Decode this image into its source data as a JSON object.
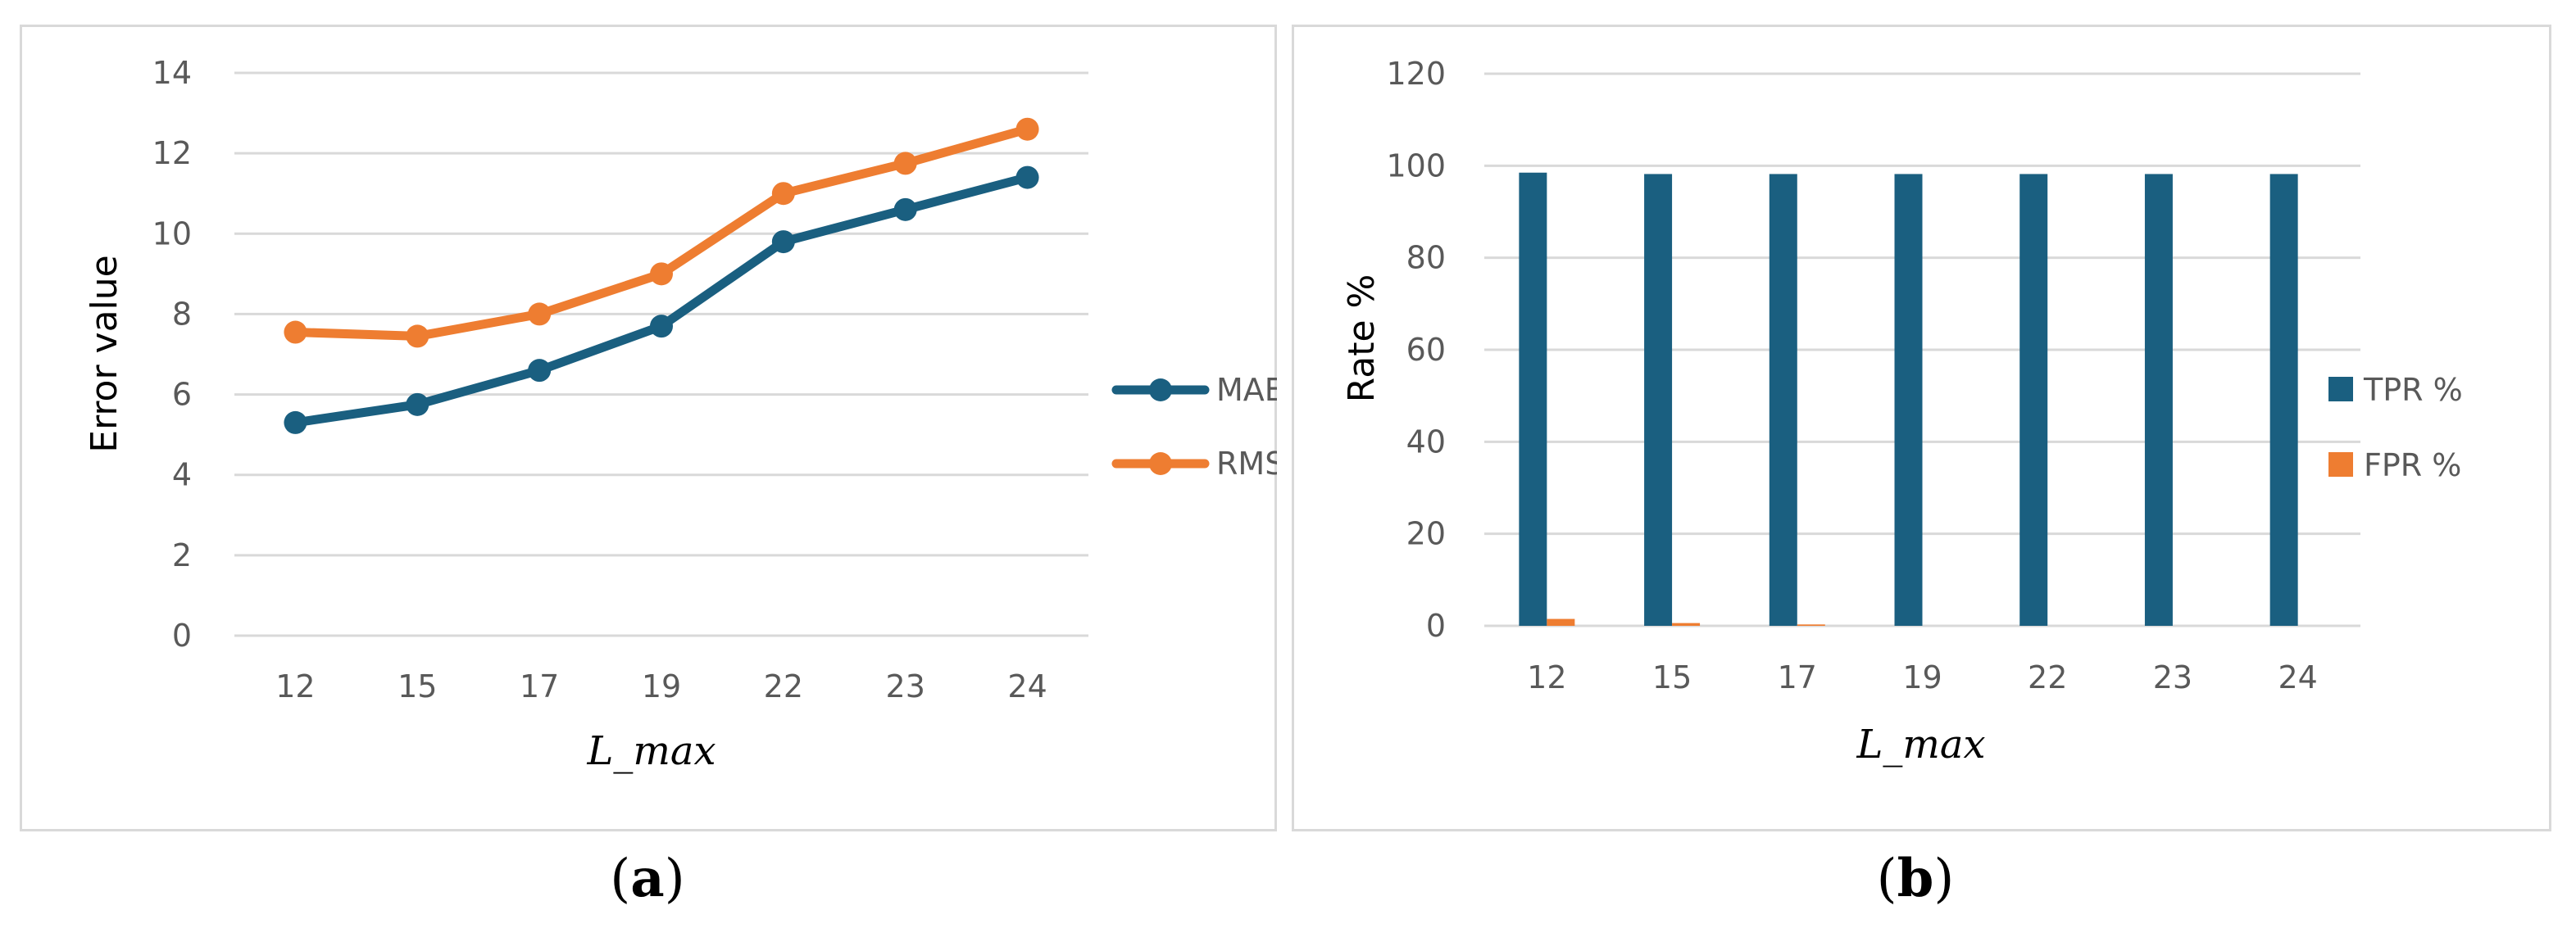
{
  "panels": {
    "a_label": "a",
    "b_label": "b"
  },
  "chart_data": [
    {
      "type": "line",
      "categories": [
        "12",
        "15",
        "17",
        "19",
        "22",
        "23",
        "24"
      ],
      "ylabel": "Error value",
      "xlabel": "L_max",
      "ylim": [
        0,
        14
      ],
      "yticks": [
        0,
        2,
        4,
        6,
        8,
        10,
        12,
        14
      ],
      "grid": true,
      "legend_position": "right",
      "series": [
        {
          "name": "MAE",
          "legend_text": "MAE",
          "color": "#1a5f80",
          "values": [
            5.3,
            5.75,
            6.6,
            7.7,
            9.8,
            10.6,
            11.4
          ]
        },
        {
          "name": "RMSE",
          "legend_text": "RMSE",
          "color": "#ee7d31",
          "values": [
            7.55,
            7.45,
            8.0,
            9.0,
            11.0,
            11.75,
            12.6
          ]
        }
      ]
    },
    {
      "type": "bar",
      "categories": [
        "12",
        "15",
        "17",
        "19",
        "22",
        "23",
        "24"
      ],
      "ylabel": "Rate %",
      "xlabel": "L_max",
      "ylim": [
        0,
        120
      ],
      "yticks": [
        0,
        20,
        40,
        60,
        80,
        100,
        120
      ],
      "grid": true,
      "legend_position": "right",
      "series": [
        {
          "name": "TPR %",
          "color": "#1a5f80",
          "values": [
            98.5,
            98.2,
            98.2,
            98.2,
            98.2,
            98.2,
            98.2
          ]
        },
        {
          "name": "FPR %",
          "color": "#ee7d31",
          "values": [
            1.5,
            0.6,
            0.3,
            0.0,
            0.0,
            0.0,
            0.0
          ]
        }
      ]
    }
  ]
}
